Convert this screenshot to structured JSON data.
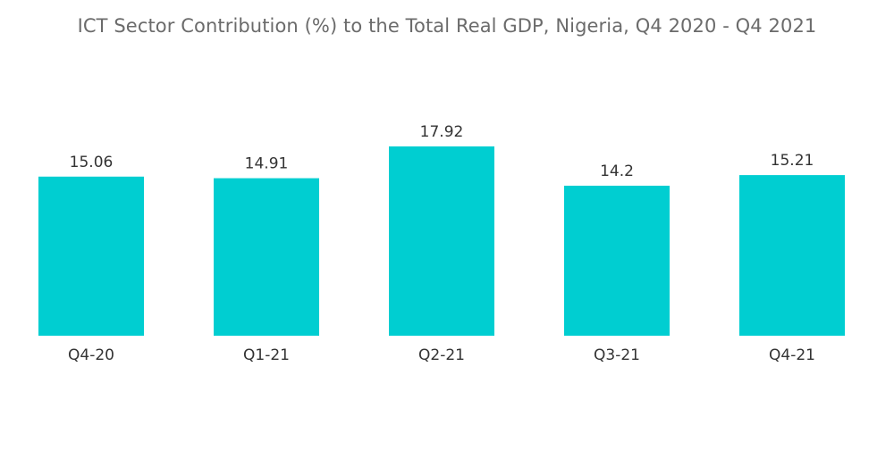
{
  "chart_data": {
    "type": "bar",
    "title": "ICT Sector Contribution (%) to the Total Real GDP, Nigeria, Q4 2020 - Q4 2021",
    "categories": [
      "Q4-20",
      "Q1-21",
      "Q2-21",
      "Q3-21",
      "Q4-21"
    ],
    "values": [
      15.06,
      14.91,
      17.92,
      14.2,
      15.21
    ],
    "value_labels": [
      "15.06",
      "14.91",
      "17.92",
      "14.2",
      "15.21"
    ],
    "xlabel": "",
    "ylabel": "",
    "ylim": [
      0,
      17.92
    ],
    "grid": false,
    "legend": "none",
    "bar_color": "#00CED1"
  }
}
